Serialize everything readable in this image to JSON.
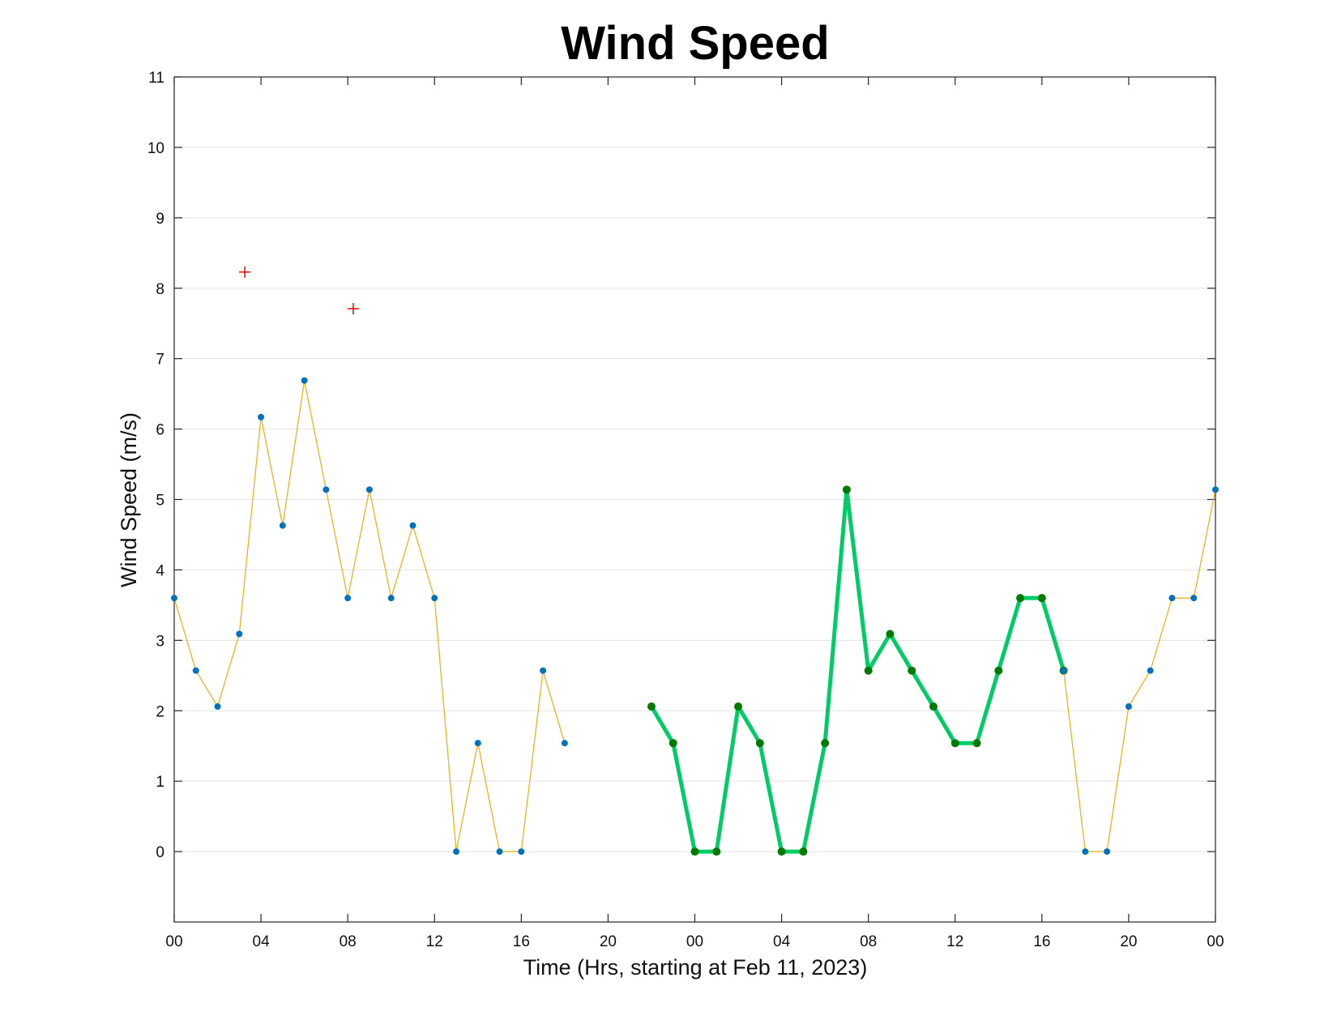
{
  "chart_data": {
    "type": "line",
    "title": "Wind Speed",
    "xlabel": "Time (Hrs, starting at Feb 11, 2023)",
    "ylabel": "Wind Speed (m/s)",
    "xlim": [
      0,
      48
    ],
    "ylim": [
      -1,
      11
    ],
    "grid": "horizontal",
    "legend": "none",
    "x_ticks": [
      0,
      4,
      8,
      12,
      16,
      20,
      24,
      28,
      32,
      36,
      40,
      44,
      48
    ],
    "x_tick_labels": [
      "00",
      "04",
      "08",
      "12",
      "16",
      "20",
      "00",
      "04",
      "08",
      "12",
      "16",
      "20",
      "00"
    ],
    "y_ticks": [
      0,
      1,
      2,
      3,
      4,
      5,
      6,
      7,
      8,
      9,
      10,
      11
    ],
    "y_tick_labels": [
      "0",
      "1",
      "2",
      "3",
      "4",
      "5",
      "6",
      "7",
      "8",
      "9",
      "10",
      "11"
    ],
    "series": [
      {
        "style": "thin-line",
        "color": "#EDB120",
        "marker_color": "#0072BD",
        "x": [
          0,
          1,
          2,
          3,
          4,
          5,
          6,
          7,
          8,
          9,
          10,
          11,
          12,
          13,
          14,
          15,
          16,
          17,
          18
        ],
        "values": [
          3.6,
          2.57,
          2.06,
          3.09,
          6.17,
          4.63,
          6.69,
          5.14,
          3.6,
          5.14,
          3.6,
          4.63,
          3.6,
          0,
          1.54,
          0,
          0,
          2.57,
          1.54
        ]
      },
      {
        "style": "thick-line",
        "color": "#00CC66",
        "marker_color": "#007A00",
        "x": [
          22,
          23,
          24,
          25,
          26,
          27,
          28,
          29,
          30,
          31,
          32,
          33,
          34,
          35,
          36,
          37,
          38,
          39,
          40,
          41
        ],
        "values": [
          2.06,
          1.54,
          0,
          0,
          2.06,
          1.54,
          0,
          0,
          1.54,
          5.14,
          2.57,
          3.09,
          2.57,
          2.06,
          1.54,
          1.54,
          2.57,
          3.6,
          3.6,
          2.57
        ]
      },
      {
        "style": "thin-line",
        "color": "#EDB120",
        "marker_color": "#0072BD",
        "x": [
          41,
          42,
          43,
          44,
          45,
          46,
          47,
          48
        ],
        "values": [
          2.57,
          0,
          0,
          2.06,
          2.57,
          3.6,
          3.6,
          5.14
        ]
      },
      {
        "style": "plus-markers",
        "color": "#FF0000",
        "x": [
          3.25,
          8.25
        ],
        "values": [
          8.23,
          7.71
        ]
      }
    ]
  }
}
